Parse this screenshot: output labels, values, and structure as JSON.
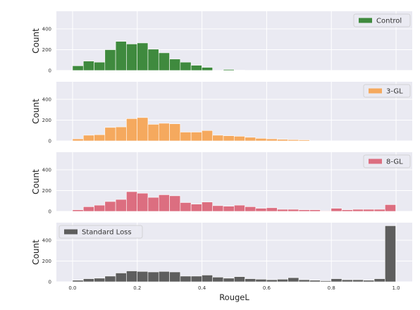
{
  "chart_data": [
    {
      "type": "bar",
      "series_name": "Control",
      "color": "#3f8a3e",
      "legend_position": "top-right",
      "ylabel": "Count",
      "xlabel": "",
      "xlim": [
        -0.05,
        1.05
      ],
      "ylim": [
        0,
        570
      ],
      "yticks": [
        "0",
        "200",
        "400"
      ],
      "bin_width": 0.0333,
      "bin_start": 0.0,
      "values": [
        45,
        90,
        80,
        200,
        280,
        255,
        265,
        205,
        170,
        110,
        80,
        50,
        30,
        0,
        10,
        3,
        0,
        0,
        0,
        0,
        0,
        0,
        0,
        0,
        0,
        0,
        0,
        0,
        0,
        0
      ]
    },
    {
      "type": "bar",
      "series_name": "3-GL",
      "color": "#f5a95e",
      "legend_position": "top-right",
      "ylabel": "Count",
      "xlabel": "",
      "xlim": [
        -0.05,
        1.05
      ],
      "ylim": [
        0,
        570
      ],
      "yticks": [
        "0",
        "200",
        "400"
      ],
      "bin_width": 0.0333,
      "bin_start": 0.0,
      "values": [
        20,
        55,
        60,
        130,
        135,
        215,
        225,
        160,
        170,
        165,
        85,
        85,
        100,
        55,
        50,
        45,
        35,
        25,
        20,
        15,
        12,
        10,
        0,
        0,
        0,
        0,
        0,
        0,
        0,
        0
      ]
    },
    {
      "type": "bar",
      "series_name": "8-GL",
      "color": "#dc6e80",
      "legend_position": "top-right",
      "ylabel": "Count",
      "xlabel": "",
      "xlim": [
        -0.05,
        1.05
      ],
      "ylim": [
        0,
        570
      ],
      "yticks": [
        "0",
        "200",
        "400"
      ],
      "bin_width": 0.0333,
      "bin_start": 0.0,
      "values": [
        15,
        45,
        60,
        95,
        115,
        190,
        175,
        135,
        160,
        150,
        85,
        70,
        90,
        55,
        50,
        60,
        45,
        30,
        35,
        20,
        20,
        15,
        15,
        5,
        30,
        15,
        20,
        20,
        20,
        65
      ]
    },
    {
      "type": "bar",
      "series_name": "Standard Loss",
      "color": "#5e5e5e",
      "legend_position": "top-left",
      "ylabel": "Count",
      "xlabel": "RougeL",
      "xlim": [
        -0.05,
        1.05
      ],
      "ylim": [
        0,
        570
      ],
      "yticks": [
        "0",
        "200",
        "400"
      ],
      "xticks": [
        "0.0",
        "0.2",
        "0.4",
        "0.6",
        "0.8",
        "1.0"
      ],
      "bin_width": 0.0333,
      "bin_start": 0.0,
      "values": [
        15,
        30,
        35,
        55,
        85,
        105,
        100,
        95,
        100,
        95,
        55,
        55,
        65,
        45,
        35,
        50,
        30,
        25,
        20,
        25,
        40,
        20,
        15,
        10,
        30,
        20,
        20,
        15,
        30,
        540
      ]
    }
  ]
}
